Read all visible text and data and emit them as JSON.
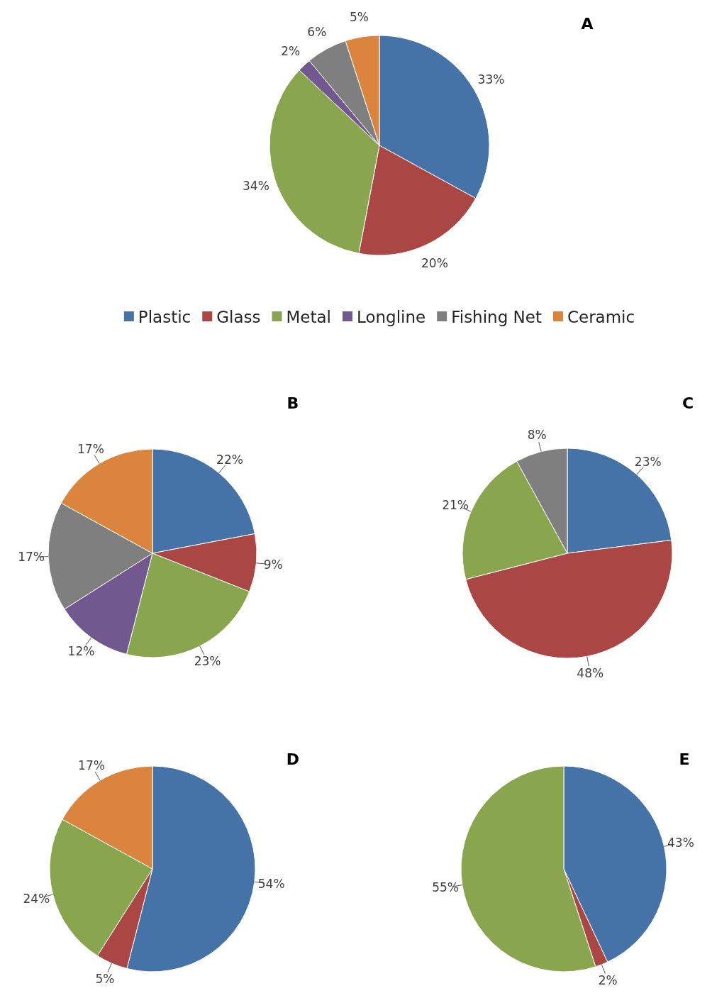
{
  "chart_data": [
    {
      "type": "pie",
      "title": "A",
      "categories": [
        "Plastic",
        "Glass",
        "Metal",
        "Longline",
        "Fishing Net",
        "Ceramic"
      ],
      "values": [
        33,
        20,
        34,
        2,
        6,
        5
      ],
      "value_labels": [
        "33%",
        "20%",
        "34%",
        "2%",
        "6%",
        "5%"
      ],
      "colors": [
        "#4572a7",
        "#aa4643",
        "#89a54e",
        "#71588f",
        "#7f7f7f",
        "#db843d"
      ],
      "legend": "bottom"
    },
    {
      "type": "pie",
      "title": "B",
      "values": [
        22,
        9,
        23,
        12,
        17,
        17
      ],
      "value_labels": [
        "22%",
        "9%",
        "23%",
        "12%",
        "17%",
        "17%"
      ],
      "colors": [
        "#4572a7",
        "#aa4643",
        "#89a54e",
        "#71588f",
        "#7f7f7f",
        "#db843d"
      ]
    },
    {
      "type": "pie",
      "title": "C",
      "values": [
        23,
        48,
        21,
        8
      ],
      "value_labels": [
        "23%",
        "48%",
        "21%",
        "8%"
      ],
      "colors": [
        "#4572a7",
        "#aa4643",
        "#89a54e",
        "#7f7f7f"
      ]
    },
    {
      "type": "pie",
      "title": "D",
      "values": [
        54,
        5,
        24,
        17
      ],
      "value_labels": [
        "54%",
        "5%",
        "24%",
        "17%"
      ],
      "colors": [
        "#4572a7",
        "#aa4643",
        "#89a54e",
        "#db843d"
      ]
    },
    {
      "type": "pie",
      "title": "E",
      "values": [
        43,
        2,
        55
      ],
      "value_labels": [
        "43%",
        "2%",
        "55%"
      ],
      "colors": [
        "#4572a7",
        "#aa4643",
        "#89a54e"
      ]
    }
  ]
}
